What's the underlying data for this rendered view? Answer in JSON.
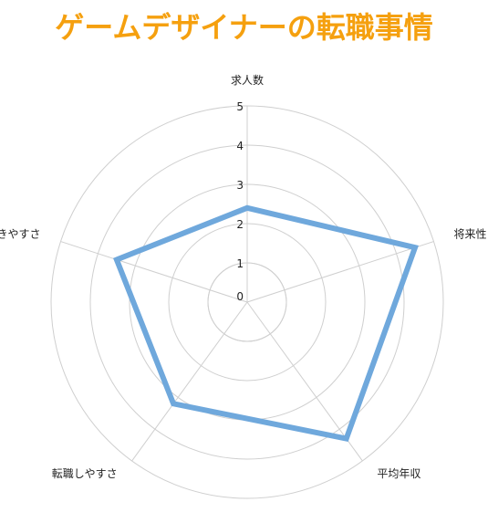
{
  "page": {
    "title": "ゲームデザイナーの転職事情",
    "title_color": "#F5A00F"
  },
  "chart_data": {
    "type": "radar",
    "title": "ゲームデザイナーの転職事情",
    "axes": [
      "求人数",
      "将来性",
      "平均年収",
      "転職しやすさ",
      "働きやすさ"
    ],
    "ticks": [
      "0",
      "1",
      "2",
      "3",
      "4",
      "5"
    ],
    "range": [
      0,
      5
    ],
    "grid": true,
    "series": [
      {
        "values": [
          2.4,
          4.5,
          4.3,
          3.2,
          3.5
        ],
        "color": "#6FA8DC"
      }
    ]
  }
}
